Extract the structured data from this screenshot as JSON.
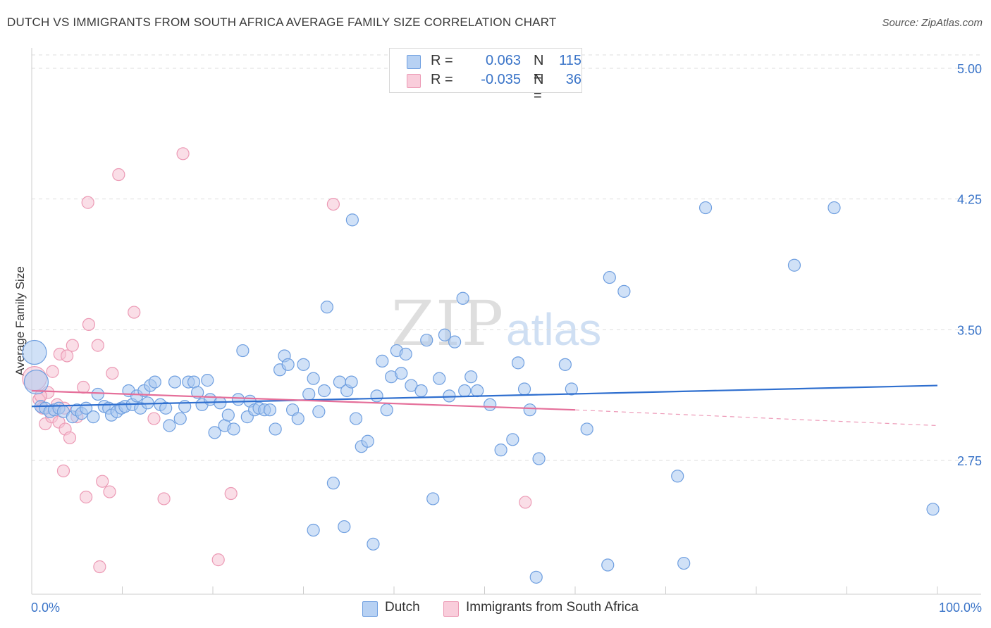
{
  "title": "DUTCH VS IMMIGRANTS FROM SOUTH AFRICA AVERAGE FAMILY SIZE CORRELATION CHART",
  "source": "Source: ZipAtlas.com",
  "legend": {
    "rows": [
      {
        "r_label": "R =",
        "r_value": "0.063",
        "n_label": "N =",
        "n_value": "115"
      },
      {
        "r_label": "R =",
        "r_value": "-0.035",
        "n_label": "N =",
        "n_value": "36"
      }
    ]
  },
  "bottom_legend": {
    "dutch": "Dutch",
    "immigrants": "Immigrants from South Africa"
  },
  "colors": {
    "dutch_fill": "#a9c8f0",
    "dutch_stroke": "#6f9fe0",
    "dutch_line": "#2f6fcf",
    "imm_fill": "#f6c3d3",
    "imm_stroke": "#ec9ab5",
    "imm_line": "#e56f9a",
    "grid": "#dddddd",
    "tick_label": "#3a74c8",
    "watermark": "#dedede"
  },
  "watermark": {
    "zip": "ZIP",
    "atlas": "atlas"
  },
  "chart_data": {
    "type": "scatter",
    "title": "DUTCH VS IMMIGRANTS FROM SOUTH AFRICA AVERAGE FAMILY SIZE CORRELATION CHART",
    "xlabel": "",
    "ylabel": "Average Family Size",
    "xlim": [
      0,
      100
    ],
    "ylim": [
      2.0,
      5.1
    ],
    "x_tick_labels": [
      "0.0%",
      "100.0%"
    ],
    "y_ticks": [
      2.75,
      3.5,
      4.25,
      5.0
    ],
    "y_tick_labels": [
      "2.75",
      "3.50",
      "4.25",
      "5.00"
    ],
    "grid": true,
    "legend_position": "top-center",
    "series": [
      {
        "name": "Dutch",
        "r": 0.063,
        "n": 115,
        "trend": {
          "x": [
            0,
            100
          ],
          "y": [
            3.06,
            3.18
          ]
        },
        "points": [
          {
            "x": 0.3,
            "y": 3.37,
            "big": true
          },
          {
            "x": 0.5,
            "y": 3.2,
            "big": true
          },
          {
            "x": 1.0,
            "y": 3.06
          },
          {
            "x": 1.5,
            "y": 3.05
          },
          {
            "x": 2.0,
            "y": 3.03
          },
          {
            "x": 2.5,
            "y": 3.04
          },
          {
            "x": 3.0,
            "y": 3.05
          },
          {
            "x": 3.5,
            "y": 3.03
          },
          {
            "x": 4.5,
            "y": 3.0
          },
          {
            "x": 5.0,
            "y": 3.04
          },
          {
            "x": 5.5,
            "y": 3.02
          },
          {
            "x": 6.0,
            "y": 3.05
          },
          {
            "x": 6.8,
            "y": 3.0
          },
          {
            "x": 7.3,
            "y": 3.13
          },
          {
            "x": 8.0,
            "y": 3.06
          },
          {
            "x": 8.5,
            "y": 3.05
          },
          {
            "x": 8.8,
            "y": 3.01
          },
          {
            "x": 9.4,
            "y": 3.03
          },
          {
            "x": 9.9,
            "y": 3.05
          },
          {
            "x": 10.3,
            "y": 3.06
          },
          {
            "x": 10.7,
            "y": 3.15
          },
          {
            "x": 11.1,
            "y": 3.07
          },
          {
            "x": 11.6,
            "y": 3.12
          },
          {
            "x": 12.0,
            "y": 3.05
          },
          {
            "x": 12.4,
            "y": 3.15
          },
          {
            "x": 12.8,
            "y": 3.08
          },
          {
            "x": 13.1,
            "y": 3.18
          },
          {
            "x": 13.6,
            "y": 3.2
          },
          {
            "x": 14.2,
            "y": 3.07
          },
          {
            "x": 14.8,
            "y": 3.05
          },
          {
            "x": 15.2,
            "y": 2.95
          },
          {
            "x": 15.8,
            "y": 3.2
          },
          {
            "x": 16.4,
            "y": 2.99
          },
          {
            "x": 16.9,
            "y": 3.06
          },
          {
            "x": 17.3,
            "y": 3.2
          },
          {
            "x": 17.9,
            "y": 3.2
          },
          {
            "x": 18.3,
            "y": 3.14
          },
          {
            "x": 18.8,
            "y": 3.07
          },
          {
            "x": 19.4,
            "y": 3.21
          },
          {
            "x": 19.7,
            "y": 3.1
          },
          {
            "x": 20.2,
            "y": 2.91
          },
          {
            "x": 20.8,
            "y": 3.08
          },
          {
            "x": 21.3,
            "y": 2.95
          },
          {
            "x": 21.7,
            "y": 3.01
          },
          {
            "x": 22.3,
            "y": 2.93
          },
          {
            "x": 22.8,
            "y": 3.1
          },
          {
            "x": 23.3,
            "y": 3.38
          },
          {
            "x": 23.8,
            "y": 3.0
          },
          {
            "x": 24.1,
            "y": 3.09
          },
          {
            "x": 24.6,
            "y": 3.04
          },
          {
            "x": 25.1,
            "y": 3.05
          },
          {
            "x": 25.7,
            "y": 3.04
          },
          {
            "x": 26.3,
            "y": 3.04
          },
          {
            "x": 26.9,
            "y": 2.93
          },
          {
            "x": 27.4,
            "y": 3.27
          },
          {
            "x": 27.9,
            "y": 3.35
          },
          {
            "x": 28.3,
            "y": 3.3
          },
          {
            "x": 28.8,
            "y": 3.04
          },
          {
            "x": 29.4,
            "y": 2.99
          },
          {
            "x": 30.0,
            "y": 3.3
          },
          {
            "x": 30.6,
            "y": 3.13
          },
          {
            "x": 31.1,
            "y": 3.22
          },
          {
            "x": 31.7,
            "y": 3.03
          },
          {
            "x": 32.3,
            "y": 3.15
          },
          {
            "x": 33.3,
            "y": 2.62
          },
          {
            "x": 34.0,
            "y": 3.2
          },
          {
            "x": 34.8,
            "y": 3.15
          },
          {
            "x": 35.3,
            "y": 3.2
          },
          {
            "x": 35.8,
            "y": 2.99
          },
          {
            "x": 36.4,
            "y": 2.83
          },
          {
            "x": 37.1,
            "y": 2.86
          },
          {
            "x": 37.7,
            "y": 2.27
          },
          {
            "x": 38.1,
            "y": 3.12
          },
          {
            "x": 38.7,
            "y": 3.32
          },
          {
            "x": 39.2,
            "y": 3.04
          },
          {
            "x": 39.7,
            "y": 3.23
          },
          {
            "x": 40.3,
            "y": 3.38
          },
          {
            "x": 40.8,
            "y": 3.25
          },
          {
            "x": 41.3,
            "y": 3.36
          },
          {
            "x": 41.9,
            "y": 3.18
          },
          {
            "x": 43.0,
            "y": 3.15
          },
          {
            "x": 43.6,
            "y": 3.44
          },
          {
            "x": 44.3,
            "y": 2.53
          },
          {
            "x": 45.0,
            "y": 3.22
          },
          {
            "x": 45.6,
            "y": 3.47
          },
          {
            "x": 46.1,
            "y": 3.12
          },
          {
            "x": 46.7,
            "y": 3.43
          },
          {
            "x": 47.8,
            "y": 3.15
          },
          {
            "x": 48.5,
            "y": 3.23
          },
          {
            "x": 49.2,
            "y": 3.15
          },
          {
            "x": 50.6,
            "y": 3.07
          },
          {
            "x": 51.8,
            "y": 2.81
          },
          {
            "x": 53.1,
            "y": 2.87
          },
          {
            "x": 53.7,
            "y": 3.31
          },
          {
            "x": 54.4,
            "y": 3.16
          },
          {
            "x": 55.0,
            "y": 3.04
          },
          {
            "x": 56.0,
            "y": 2.76
          },
          {
            "x": 58.9,
            "y": 3.3
          },
          {
            "x": 59.6,
            "y": 3.16
          },
          {
            "x": 61.3,
            "y": 2.93
          },
          {
            "x": 63.8,
            "y": 3.8
          },
          {
            "x": 65.4,
            "y": 3.72
          },
          {
            "x": 71.3,
            "y": 2.66
          },
          {
            "x": 74.4,
            "y": 4.2
          },
          {
            "x": 55.7,
            "y": 2.08
          },
          {
            "x": 63.6,
            "y": 2.15
          },
          {
            "x": 72.0,
            "y": 2.16
          },
          {
            "x": 84.2,
            "y": 3.87
          },
          {
            "x": 88.6,
            "y": 4.2
          },
          {
            "x": 99.5,
            "y": 2.47
          },
          {
            "x": 35.4,
            "y": 4.13
          },
          {
            "x": 32.6,
            "y": 3.63
          },
          {
            "x": 47.6,
            "y": 3.68
          },
          {
            "x": 31.1,
            "y": 2.35
          },
          {
            "x": 34.5,
            "y": 2.37
          }
        ]
      },
      {
        "name": "Immigrants from South Africa",
        "r": -0.035,
        "n": 36,
        "trend": {
          "x": [
            0,
            60
          ],
          "y": [
            3.15,
            3.04
          ]
        },
        "trend_dashed": {
          "x": [
            60,
            100
          ],
          "y": [
            3.04,
            2.95
          ]
        },
        "points": [
          {
            "x": 0.3,
            "y": 3.22,
            "big": true
          },
          {
            "x": 0.8,
            "y": 3.1
          },
          {
            "x": 1.2,
            "y": 3.05
          },
          {
            "x": 1.5,
            "y": 2.96
          },
          {
            "x": 1.8,
            "y": 3.14
          },
          {
            "x": 2.2,
            "y": 3.0
          },
          {
            "x": 2.3,
            "y": 3.26
          },
          {
            "x": 2.8,
            "y": 3.07
          },
          {
            "x": 3.0,
            "y": 2.97
          },
          {
            "x": 3.1,
            "y": 3.36
          },
          {
            "x": 3.6,
            "y": 3.05
          },
          {
            "x": 3.7,
            "y": 2.93
          },
          {
            "x": 3.9,
            "y": 3.35
          },
          {
            "x": 4.2,
            "y": 2.88
          },
          {
            "x": 4.5,
            "y": 3.41
          },
          {
            "x": 5.0,
            "y": 3.0
          },
          {
            "x": 5.7,
            "y": 3.17
          },
          {
            "x": 6.3,
            "y": 3.53
          },
          {
            "x": 7.3,
            "y": 3.41
          },
          {
            "x": 7.8,
            "y": 2.63
          },
          {
            "x": 8.9,
            "y": 3.25
          },
          {
            "x": 9.6,
            "y": 4.39
          },
          {
            "x": 11.3,
            "y": 3.6
          },
          {
            "x": 13.5,
            "y": 2.99
          },
          {
            "x": 14.6,
            "y": 2.53
          },
          {
            "x": 16.7,
            "y": 4.51
          },
          {
            "x": 20.6,
            "y": 2.18
          },
          {
            "x": 22.0,
            "y": 2.56
          },
          {
            "x": 33.3,
            "y": 4.22
          },
          {
            "x": 6.2,
            "y": 4.23
          },
          {
            "x": 3.5,
            "y": 2.69
          },
          {
            "x": 6.0,
            "y": 2.54
          },
          {
            "x": 8.6,
            "y": 2.57
          },
          {
            "x": 7.5,
            "y": 2.14
          },
          {
            "x": 54.5,
            "y": 2.51
          },
          {
            "x": 1.0,
            "y": 3.12
          }
        ]
      }
    ]
  }
}
